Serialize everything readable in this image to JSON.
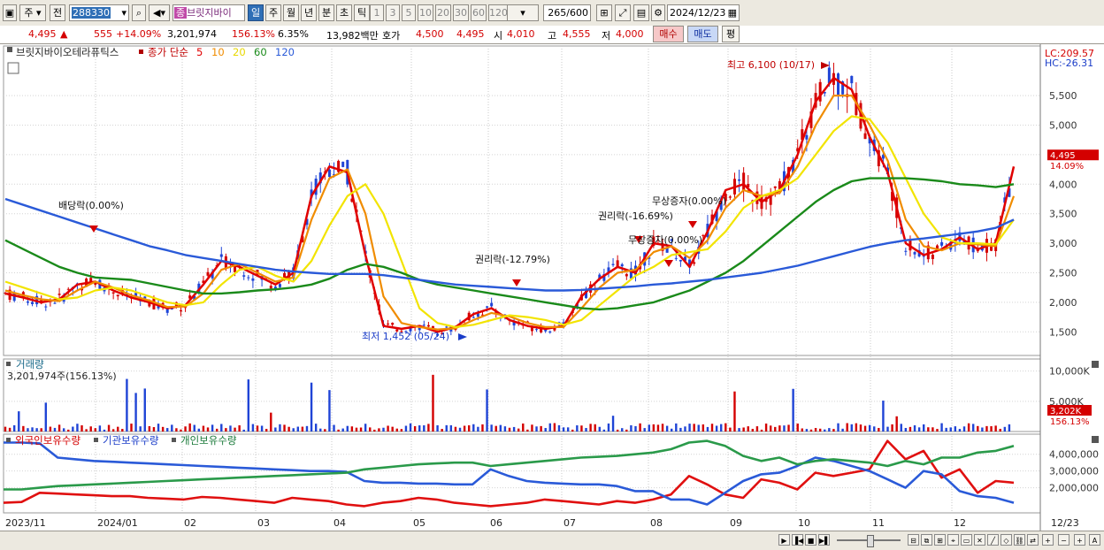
{
  "toolbar": {
    "market": "주",
    "kind": "전",
    "code": "288330",
    "name_badge": "종",
    "name": "브릿지바이",
    "periods": [
      "일",
      "주",
      "월",
      "년",
      "분",
      "초",
      "틱"
    ],
    "active_period": "일",
    "minute_steps": [
      "1",
      "3",
      "5",
      "10",
      "20",
      "30",
      "60",
      "120"
    ],
    "count": "265",
    "count_total": "/600",
    "date": "2024/12/23"
  },
  "quote": {
    "price": "4,495",
    "change": "555",
    "change_pct": "+14.09%",
    "volume": "3,201,974",
    "volume_ratio": "156.13%",
    "turnover": "6.35%",
    "amount": "13,982백만",
    "ask_label": "호가",
    "ask1": "4,500",
    "ask2": "4,495",
    "open_label": "시",
    "open": "4,010",
    "high_label": "고",
    "high": "4,555",
    "low_label": "저",
    "low": "4,000",
    "buy": "매수",
    "sell": "매도",
    "eval": "평"
  },
  "legend": {
    "name": "브릿지바이오테라퓨틱스",
    "ma_label": "종가 단순",
    "ma": [
      {
        "label": "5",
        "color": "#e00000"
      },
      {
        "label": "10",
        "color": "#f08c00"
      },
      {
        "label": "20",
        "color": "#e8d800"
      },
      {
        "label": "60",
        "color": "#1a8a1a"
      },
      {
        "label": "120",
        "color": "#2a5ad8"
      }
    ]
  },
  "right_labels": {
    "lc": "LC:209.57",
    "hc": "HC:-26.31"
  },
  "volume_panel": {
    "title": "거래량",
    "value": "3,201,974주(156.13%)",
    "last": "3,202K",
    "pct": "156.13%"
  },
  "holdings_panel": {
    "titles": [
      "외국인보유수량",
      "기관보유수량",
      "개인보유수량"
    ]
  },
  "bottom": {
    "date_right": "12/23"
  },
  "colors": {
    "up": "#d40000",
    "down": "#1f44d6",
    "ma5": "#e00000",
    "ma10": "#f08c00",
    "ma20": "#f2e400",
    "ma60": "#1a8a1a",
    "ma120": "#2a5ad8",
    "foreign": "#e01010",
    "inst": "#2a5ad8",
    "retail": "#2a9a4a"
  },
  "chart_data": [
    {
      "type": "line",
      "title": "",
      "ylim": [
        1100,
        6250
      ],
      "y_ticks": [
        1500,
        2000,
        2500,
        3000,
        3500,
        4000,
        4500,
        5000,
        5500
      ],
      "y_tick_labels": [
        "1,500",
        "2,000",
        "2,500",
        "3,000",
        "3,500",
        "4,000",
        "4,500",
        "5,000",
        "5,500"
      ],
      "x_ticks": [
        "2023/11",
        "2024/01",
        "02",
        "03",
        "04",
        "05",
        "06",
        "07",
        "08",
        "09",
        "10",
        "11",
        "12"
      ],
      "note": "daily candlesticks with 5/10/20/60/120-day moving averages",
      "series": [
        {
          "name": "5",
          "values": [
            2150,
            2080,
            2000,
            2050,
            2300,
            2350,
            2200,
            2080,
            2000,
            1900,
            1950,
            2300,
            2700,
            2600,
            2450,
            2300,
            2500,
            3800,
            4300,
            4200,
            2800,
            1600,
            1550,
            1600,
            1500,
            1580,
            1800,
            1900,
            1700,
            1600,
            1550,
            1600,
            2100,
            2400,
            2600,
            2500,
            3000,
            2950,
            2600,
            3200,
            3900,
            4000,
            3700,
            3900,
            4500,
            5400,
            5800,
            5600,
            4800,
            4200,
            3000,
            2800,
            2900,
            3100,
            2900,
            3000,
            4300
          ]
        },
        {
          "name": "10",
          "values": [
            2200,
            2120,
            2050,
            2020,
            2200,
            2350,
            2250,
            2120,
            2030,
            1920,
            1930,
            2150,
            2550,
            2650,
            2500,
            2350,
            2420,
            3400,
            4100,
            4250,
            3500,
            2100,
            1650,
            1580,
            1540,
            1560,
            1700,
            1820,
            1760,
            1650,
            1580,
            1580,
            1900,
            2250,
            2500,
            2550,
            2850,
            2950,
            2750,
            3050,
            3600,
            3900,
            3800,
            3850,
            4300,
            5000,
            5500,
            5500,
            5000,
            4400,
            3400,
            2950,
            2880,
            3000,
            2980,
            2950,
            3800
          ]
        },
        {
          "name": "20",
          "values": [
            2350,
            2250,
            2150,
            2050,
            2080,
            2200,
            2250,
            2200,
            2100,
            2000,
            1950,
            2000,
            2300,
            2550,
            2600,
            2450,
            2350,
            2700,
            3300,
            3800,
            4000,
            3500,
            2700,
            1900,
            1650,
            1580,
            1620,
            1700,
            1780,
            1750,
            1700,
            1620,
            1700,
            1950,
            2200,
            2450,
            2600,
            2800,
            2850,
            2900,
            3200,
            3600,
            3800,
            3900,
            4100,
            4500,
            4900,
            5150,
            5100,
            4700,
            4100,
            3500,
            3100,
            3000,
            3000,
            2980,
            3400
          ]
        },
        {
          "name": "60",
          "values": [
            3050,
            2900,
            2750,
            2600,
            2500,
            2420,
            2400,
            2380,
            2320,
            2260,
            2200,
            2150,
            2150,
            2170,
            2200,
            2220,
            2250,
            2300,
            2400,
            2550,
            2650,
            2600,
            2500,
            2380,
            2300,
            2250,
            2200,
            2150,
            2100,
            2050,
            2000,
            1950,
            1900,
            1880,
            1900,
            1950,
            2000,
            2100,
            2200,
            2350,
            2500,
            2700,
            2950,
            3200,
            3450,
            3700,
            3900,
            4050,
            4100,
            4100,
            4100,
            4080,
            4050,
            4000,
            3980,
            3950,
            4000
          ]
        },
        {
          "name": "120",
          "values": [
            3750,
            3650,
            3550,
            3450,
            3350,
            3250,
            3150,
            3050,
            2950,
            2880,
            2800,
            2750,
            2700,
            2650,
            2600,
            2550,
            2520,
            2500,
            2480,
            2480,
            2480,
            2460,
            2420,
            2380,
            2340,
            2300,
            2280,
            2260,
            2240,
            2220,
            2200,
            2200,
            2210,
            2230,
            2250,
            2270,
            2300,
            2320,
            2350,
            2380,
            2420,
            2460,
            2500,
            2560,
            2620,
            2700,
            2780,
            2860,
            2940,
            3000,
            3050,
            3080,
            3120,
            3160,
            3200,
            3260,
            3400
          ]
        }
      ],
      "annotations": [
        "배당락(0.00%)",
        "권리락(-12.79%)",
        "권리락(-16.69%)",
        "무상증자(0.00%)",
        "무상증자(0.00%)",
        "최고 6,100 (10/17)",
        "최저 1,452 (05/24)"
      ],
      "right_badges": [
        "4,495",
        "14.09%"
      ]
    },
    {
      "type": "bar",
      "title": "거래량",
      "y_tick_labels": [
        "10,000K",
        "5,000K"
      ],
      "ylim": [
        0,
        12000
      ],
      "note": "daily volume in thousands of shares"
    },
    {
      "type": "line",
      "y_tick_labels": [
        "4,000,000",
        "3,000,000",
        "2,000,000"
      ],
      "ylim": [
        500000,
        5200000
      ],
      "series": [
        {
          "name": "외국인보유수량",
          "values": [
            1100000,
            1150000,
            1700000,
            1650000,
            1600000,
            1550000,
            1500000,
            1500000,
            1400000,
            1350000,
            1300000,
            1450000,
            1400000,
            1300000,
            1200000,
            1100000,
            1400000,
            1300000,
            1200000,
            1000000,
            900000,
            1100000,
            1200000,
            1400000,
            1300000,
            1100000,
            1000000,
            900000,
            1000000,
            1100000,
            1300000,
            1200000,
            1100000,
            1000000,
            1200000,
            1100000,
            1300000,
            1600000,
            2700000,
            2200000,
            1600000,
            1400000,
            2500000,
            2300000,
            1900000,
            2900000,
            2700000,
            2900000,
            3100000,
            4800000,
            3700000,
            4200000,
            2600000,
            3100000,
            1700000,
            2400000,
            2300000
          ]
        },
        {
          "name": "기관보유수량",
          "values": [
            4700000,
            4700000,
            4650000,
            3800000,
            3700000,
            3600000,
            3550000,
            3500000,
            3450000,
            3400000,
            3350000,
            3300000,
            3250000,
            3200000,
            3150000,
            3100000,
            3050000,
            3000000,
            3000000,
            2950000,
            2400000,
            2300000,
            2300000,
            2250000,
            2250000,
            2200000,
            2200000,
            3100000,
            2700000,
            2400000,
            2300000,
            2250000,
            2200000,
            2200000,
            2100000,
            1800000,
            1800000,
            1300000,
            1300000,
            1000000,
            1700000,
            2400000,
            2800000,
            2900000,
            3300000,
            3800000,
            3600000,
            3300000,
            3000000,
            2500000,
            2000000,
            3000000,
            2800000,
            1800000,
            1500000,
            1400000,
            1100000
          ]
        },
        {
          "name": "개인보유수량",
          "values": [
            1900000,
            1900000,
            2000000,
            2100000,
            2150000,
            2200000,
            2250000,
            2300000,
            2350000,
            2400000,
            2450000,
            2500000,
            2550000,
            2600000,
            2650000,
            2700000,
            2750000,
            2800000,
            2850000,
            2900000,
            3100000,
            3200000,
            3300000,
            3400000,
            3450000,
            3500000,
            3500000,
            3300000,
            3400000,
            3500000,
            3600000,
            3700000,
            3800000,
            3850000,
            3900000,
            4000000,
            4100000,
            4300000,
            4700000,
            4800000,
            4500000,
            3900000,
            3600000,
            3800000,
            3400000,
            3600000,
            3700000,
            3600000,
            3500000,
            3300000,
            3600000,
            3400000,
            3800000,
            3800000,
            4100000,
            4200000,
            4500000
          ]
        }
      ]
    }
  ]
}
